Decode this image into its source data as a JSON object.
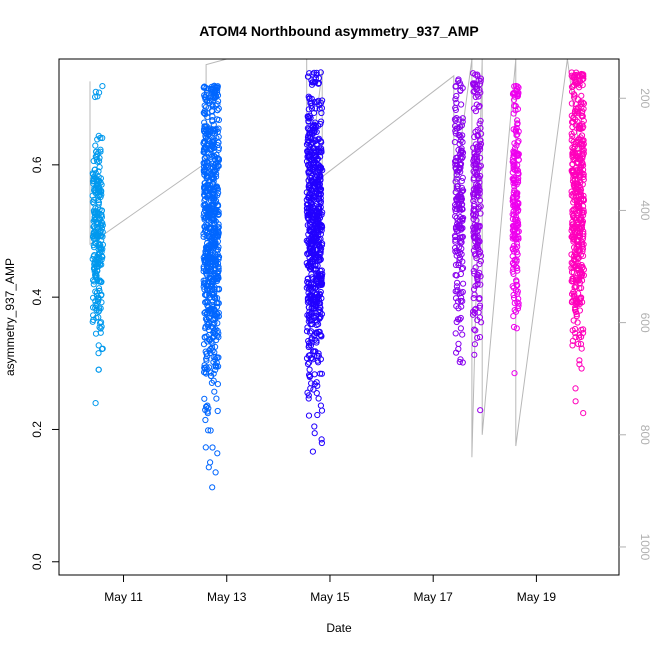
{
  "chart_data": {
    "type": "scatter",
    "title": "ATOM4 Northbound asymmetry_937_AMP",
    "xlabel": "Date",
    "ylabel": "asymmetry_937_AMP",
    "x_ticks": [
      "May 11",
      "May 13",
      "May 15",
      "May 17",
      "May 19"
    ],
    "y_ticks": [
      "0.0",
      "0.2",
      "0.4",
      "0.6"
    ],
    "y2_ticks": [
      "200",
      "400",
      "600",
      "800",
      "1000"
    ],
    "xlim_days": [
      9.75,
      20.6
    ],
    "ylim": [
      -0.02,
      0.76
    ],
    "y2lim": [
      1050,
      130
    ],
    "x_tick_days": [
      11,
      13,
      15,
      17,
      19
    ],
    "y_tick_values": [
      0.0,
      0.2,
      0.4,
      0.6
    ],
    "y2_tick_values": [
      200,
      400,
      600,
      800,
      1000
    ],
    "marker": "open-circle",
    "grid": false,
    "clusters": [
      {
        "day": 10.5,
        "spread": 0.1,
        "center": 0.5,
        "sd": 0.085,
        "low": 0.1,
        "high": 0.72,
        "count": 260,
        "color": "#0099ee"
      },
      {
        "day": 12.7,
        "spread": 0.15,
        "center": 0.5,
        "sd": 0.13,
        "low": 0.005,
        "high": 0.72,
        "count": 700,
        "color": "#0066ff"
      },
      {
        "day": 14.7,
        "spread": 0.15,
        "center": 0.5,
        "sd": 0.12,
        "low": 0.06,
        "high": 0.74,
        "count": 650,
        "color": "#2200ff"
      },
      {
        "day": 17.5,
        "spread": 0.08,
        "center": 0.55,
        "sd": 0.1,
        "low": 0.3,
        "high": 0.73,
        "count": 200,
        "color": "#8800ee"
      },
      {
        "day": 17.85,
        "spread": 0.08,
        "center": 0.55,
        "sd": 0.12,
        "low": 0.04,
        "high": 0.74,
        "count": 200,
        "color": "#9900ee"
      },
      {
        "day": 18.6,
        "spread": 0.06,
        "center": 0.55,
        "sd": 0.1,
        "low": 0.04,
        "high": 0.72,
        "count": 200,
        "color": "#ee00ee"
      },
      {
        "day": 19.8,
        "spread": 0.12,
        "center": 0.55,
        "sd": 0.11,
        "low": 0.01,
        "high": 0.74,
        "count": 450,
        "color": "#ff00bb"
      }
    ],
    "secondary_line": {
      "color": "#b8b8b8",
      "points": [
        [
          10.35,
          170
        ],
        [
          10.35,
          460
        ],
        [
          12.6,
          315
        ],
        [
          12.6,
          140
        ],
        [
          13.0,
          130
        ],
        [
          14.55,
          130
        ],
        [
          14.55,
          380
        ],
        [
          14.85,
          150
        ],
        [
          14.85,
          340
        ],
        [
          17.4,
          160
        ],
        [
          17.4,
          370
        ],
        [
          17.75,
          130
        ],
        [
          17.75,
          840
        ],
        [
          17.95,
          130
        ],
        [
          17.95,
          800
        ],
        [
          18.6,
          130
        ],
        [
          18.6,
          820
        ],
        [
          19.6,
          130
        ],
        [
          19.9,
          340
        ]
      ]
    }
  }
}
